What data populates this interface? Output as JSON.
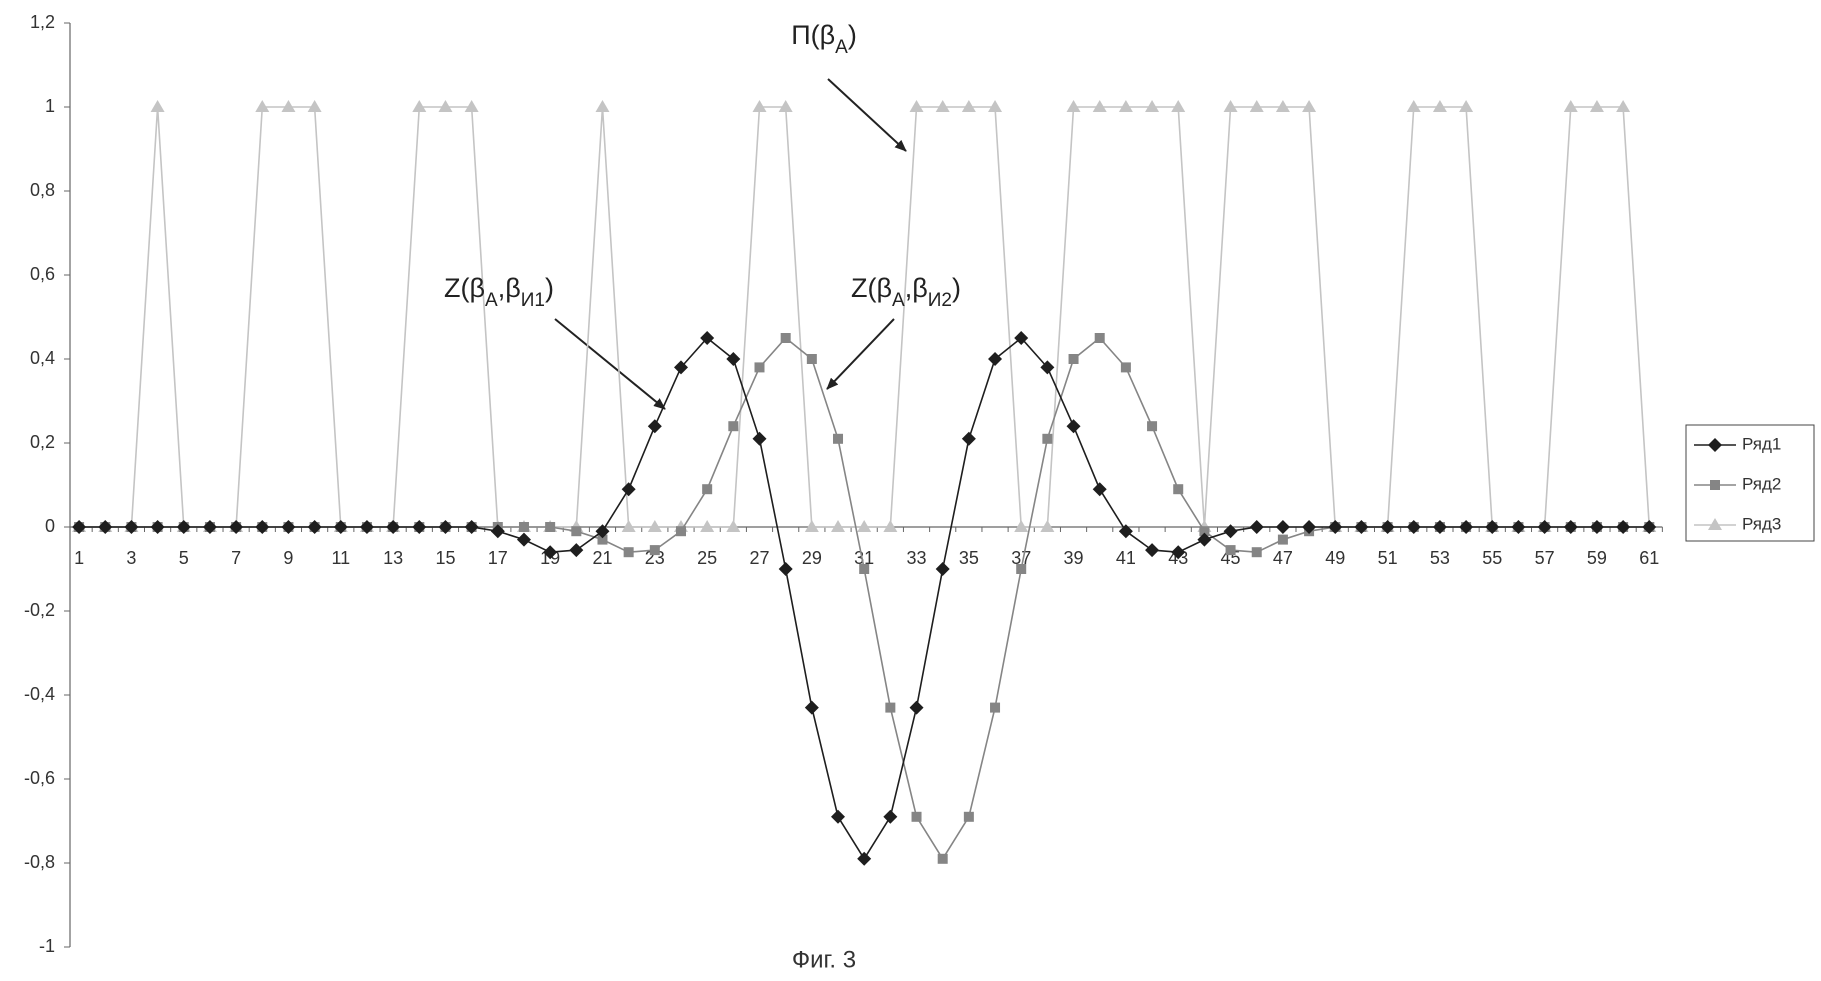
{
  "chart_data": {
    "type": "line",
    "caption": "Фиг. 3",
    "categories": [
      "1",
      null,
      "3",
      null,
      "5",
      null,
      "7",
      null,
      "9",
      null,
      "11",
      null,
      "13",
      null,
      "15",
      null,
      "17",
      null,
      "19",
      null,
      "21",
      null,
      "23",
      null,
      "25",
      null,
      "27",
      null,
      "29",
      null,
      "31",
      null,
      "33",
      null,
      "35",
      null,
      "37",
      null,
      "39",
      null,
      "41",
      null,
      "43",
      null,
      "45",
      null,
      "47",
      null,
      "49",
      null,
      "51",
      null,
      "53",
      null,
      "55",
      null,
      "57",
      null,
      "59",
      null,
      "61"
    ],
    "ylim": [
      -1,
      1.2
    ],
    "yticks": [
      -1,
      {
        "value": -0.8,
        "label": "-0,8"
      },
      {
        "value": -0.6,
        "label": "-0,6"
      },
      {
        "value": -0.4,
        "label": "-0,4"
      },
      {
        "value": -0.2,
        "label": "-0,2"
      },
      0,
      {
        "value": 0.2,
        "label": "0,2"
      },
      {
        "value": 0.4,
        "label": "0,4"
      },
      {
        "value": 0.6,
        "label": "0,6"
      },
      {
        "value": 0.8,
        "label": "0,8"
      },
      1,
      {
        "value": 1.2,
        "label": "1,2"
      }
    ],
    "grid": false,
    "legend": "right",
    "series": [
      {
        "name": "Ряд1",
        "color": "#1e1e1e",
        "marker": "diamond",
        "values": [
          0,
          0,
          0,
          0,
          0,
          0,
          0,
          0,
          0,
          0,
          0,
          0,
          0,
          0,
          0,
          0,
          -0.01,
          -0.03,
          -0.06,
          -0.055,
          -0.01,
          0.09,
          0.24,
          0.38,
          0.45,
          0.4,
          0.21,
          -0.1,
          -0.43,
          -0.69,
          -0.79,
          -0.69,
          -0.43,
          -0.1,
          0.21,
          0.4,
          0.45,
          0.38,
          0.24,
          0.09,
          -0.01,
          -0.055,
          -0.06,
          -0.03,
          -0.01,
          0,
          0,
          0,
          0,
          0,
          0,
          0,
          0,
          0,
          0,
          0,
          0,
          0,
          0,
          0,
          0
        ]
      },
      {
        "name": "Ряд2",
        "color": "#858585",
        "marker": "square",
        "values": [
          0,
          0,
          0,
          0,
          0,
          0,
          0,
          0,
          0,
          0,
          0,
          0,
          0,
          0,
          0,
          0,
          0,
          0,
          0,
          -0.01,
          -0.03,
          -0.06,
          -0.055,
          -0.01,
          0.09,
          0.24,
          0.38,
          0.45,
          0.4,
          0.21,
          -0.1,
          -0.43,
          -0.69,
          -0.79,
          -0.69,
          -0.43,
          -0.1,
          0.21,
          0.4,
          0.45,
          0.38,
          0.24,
          0.09,
          -0.01,
          -0.055,
          -0.06,
          -0.03,
          -0.01,
          0,
          0,
          0,
          0,
          0,
          0,
          0,
          0,
          0,
          0,
          0,
          0,
          0
        ]
      },
      {
        "name": "Ряд3",
        "color": "#c4c4c4",
        "marker": "triangle",
        "values": [
          0,
          0,
          0,
          1,
          0,
          0,
          0,
          1,
          1,
          1,
          0,
          0,
          0,
          1,
          1,
          1,
          0,
          0,
          0,
          0,
          1,
          0,
          0,
          0,
          0,
          0,
          1,
          1,
          0,
          0,
          0,
          0,
          1,
          1,
          1,
          1,
          0,
          0,
          1,
          1,
          1,
          1,
          1,
          0,
          1,
          1,
          1,
          1,
          0,
          0,
          0,
          1,
          1,
          1,
          0,
          0,
          0,
          1,
          1,
          1,
          0
        ]
      }
    ],
    "annotations": [
      {
        "text": [
          "П(β",
          "A",
          ")"
        ]
      },
      {
        "text": [
          "Z(β",
          "A",
          ",β",
          "И1",
          ")"
        ]
      },
      {
        "text": [
          "Z(β",
          "A",
          ",β",
          "И2",
          ")"
        ]
      }
    ]
  }
}
